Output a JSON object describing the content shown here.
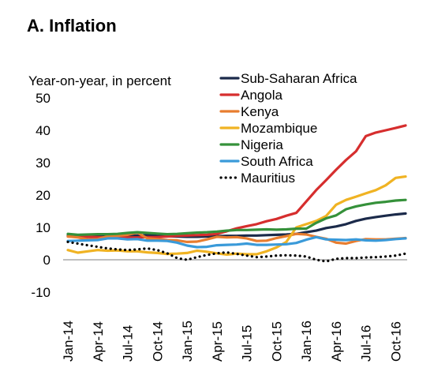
{
  "chart_data": {
    "type": "line",
    "title": "A.  Inflation",
    "ylabel": "Year-on-year, in percent",
    "xlabel": "",
    "ylim": [
      -10,
      50
    ],
    "yticks": [
      50,
      40,
      30,
      20,
      10,
      0,
      -10
    ],
    "xtick_labels": [
      "Jan-14",
      "Apr-14",
      "Jul-14",
      "Oct-14",
      "Jan-15",
      "Apr-15",
      "Jul-15",
      "Oct-15",
      "Jan-16",
      "Apr-16",
      "Jul-16",
      "Oct-16"
    ],
    "x_months": [
      "Jan-14",
      "Feb-14",
      "Mar-14",
      "Apr-14",
      "May-14",
      "Jun-14",
      "Jul-14",
      "Aug-14",
      "Sep-14",
      "Oct-14",
      "Nov-14",
      "Dec-14",
      "Jan-15",
      "Feb-15",
      "Mar-15",
      "Apr-15",
      "May-15",
      "Jun-15",
      "Jul-15",
      "Aug-15",
      "Sep-15",
      "Oct-15",
      "Nov-15",
      "Dec-15",
      "Jan-16",
      "Feb-16",
      "Mar-16",
      "Apr-16",
      "May-16",
      "Jun-16",
      "Jul-16",
      "Aug-16",
      "Sep-16",
      "Oct-16",
      "Nov-16"
    ],
    "grid": false,
    "legend_position": "top-right",
    "series": [
      {
        "name": "Sub-Saharan Africa",
        "color": "#1b2a4a",
        "dash": "solid",
        "values": [
          7.5,
          7.3,
          7.2,
          7.2,
          7.3,
          7.4,
          7.5,
          7.5,
          7.6,
          7.4,
          7.3,
          7.2,
          7.1,
          7.1,
          7.2,
          7.3,
          7.4,
          7.4,
          7.5,
          7.5,
          7.6,
          7.7,
          7.8,
          8.0,
          8.5,
          9.0,
          9.8,
          10.3,
          11.0,
          12.0,
          12.7,
          13.2,
          13.6,
          14.0,
          14.3
        ]
      },
      {
        "name": "Angola",
        "color": "#d62e2e",
        "dash": "solid",
        "values": [
          7.2,
          7.2,
          7.1,
          7.0,
          6.9,
          6.9,
          6.9,
          6.9,
          7.0,
          7.0,
          7.2,
          7.4,
          7.5,
          7.6,
          7.7,
          8.0,
          8.8,
          9.7,
          10.4,
          11.0,
          11.9,
          12.6,
          13.6,
          14.5,
          18.0,
          21.5,
          24.6,
          27.8,
          30.8,
          33.5,
          38.2,
          39.3,
          40.0,
          40.7,
          41.5
        ]
      },
      {
        "name": "Kenya",
        "color": "#e87d2f",
        "dash": "solid",
        "values": [
          7.2,
          6.9,
          6.3,
          6.4,
          7.3,
          7.4,
          7.7,
          8.4,
          6.6,
          6.4,
          6.1,
          6.0,
          5.5,
          5.6,
          6.3,
          7.1,
          6.9,
          7.0,
          6.6,
          5.8,
          5.9,
          6.7,
          7.3,
          8.0,
          7.8,
          7.1,
          6.5,
          5.3,
          5.0,
          5.8,
          6.4,
          6.3,
          6.3,
          6.5,
          6.7
        ]
      },
      {
        "name": "Mozambique",
        "color": "#f0b323",
        "dash": "solid",
        "values": [
          3.0,
          2.2,
          2.6,
          3.0,
          2.8,
          2.9,
          2.6,
          2.6,
          2.3,
          2.1,
          1.8,
          1.9,
          2.1,
          2.8,
          2.5,
          2.0,
          1.6,
          1.9,
          1.7,
          1.7,
          2.6,
          3.8,
          5.5,
          10.0,
          11.0,
          12.0,
          13.5,
          17.0,
          18.5,
          19.5,
          20.5,
          21.5,
          23.0,
          25.3,
          25.7
        ]
      },
      {
        "name": "Nigeria",
        "color": "#35913a",
        "dash": "solid",
        "values": [
          8.0,
          7.7,
          7.8,
          7.9,
          7.9,
          8.0,
          8.3,
          8.5,
          8.3,
          8.1,
          7.9,
          8.0,
          8.2,
          8.4,
          8.5,
          8.7,
          9.0,
          9.2,
          9.2,
          9.3,
          9.4,
          9.3,
          9.4,
          9.6,
          9.6,
          11.4,
          12.8,
          13.7,
          15.6,
          16.5,
          17.1,
          17.6,
          17.9,
          18.3,
          18.5
        ]
      },
      {
        "name": "South Africa",
        "color": "#3a9ad9",
        "dash": "solid",
        "values": [
          5.8,
          5.9,
          6.0,
          6.1,
          6.6,
          6.6,
          6.3,
          6.4,
          5.9,
          5.9,
          5.8,
          5.3,
          4.4,
          3.9,
          4.0,
          4.5,
          4.6,
          4.7,
          5.0,
          4.6,
          4.6,
          4.7,
          4.8,
          5.2,
          6.2,
          7.0,
          6.3,
          6.2,
          6.1,
          6.3,
          6.0,
          5.9,
          6.1,
          6.4,
          6.6
        ]
      },
      {
        "name": "Mauritius",
        "color": "#000000",
        "dash": "dotted",
        "values": [
          5.5,
          5.0,
          4.5,
          4.0,
          3.5,
          3.2,
          3.0,
          3.2,
          3.5,
          3.0,
          2.0,
          0.5,
          0.0,
          0.8,
          1.5,
          2.0,
          2.3,
          1.8,
          1.3,
          0.8,
          1.0,
          1.3,
          1.4,
          1.3,
          1.0,
          0.0,
          -0.5,
          0.3,
          0.5,
          0.5,
          0.7,
          0.8,
          1.0,
          1.3,
          1.9
        ]
      }
    ]
  }
}
